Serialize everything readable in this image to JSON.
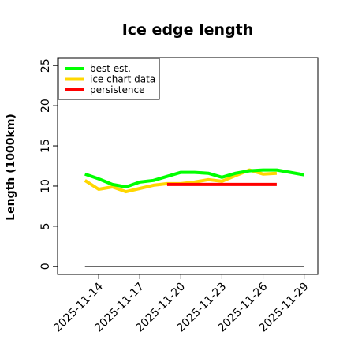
{
  "colors": {
    "best_est": "#00ff00",
    "ice_chart": "#ffd700",
    "persistence": "#ff0000",
    "zero_line": "#555555"
  },
  "chart_data": {
    "type": "line",
    "title": "Ice edge length",
    "xlabel": "",
    "ylabel": "Length (1000km)",
    "x_type": "date",
    "xlim": [
      "2025-11-11",
      "2025-11-30"
    ],
    "ylim": [
      -1,
      26
    ],
    "x_ticks": [
      "2025-11-14",
      "2025-11-17",
      "2025-11-20",
      "2025-11-23",
      "2025-11-26",
      "2025-11-29"
    ],
    "y_ticks": [
      0,
      5,
      10,
      15,
      20,
      25
    ],
    "grid": false,
    "legend_position": "top-left",
    "series": [
      {
        "name": "best est.",
        "color_key": "best_est",
        "x": [
          "2025-11-13",
          "2025-11-14",
          "2025-11-15",
          "2025-11-16",
          "2025-11-17",
          "2025-11-18",
          "2025-11-19",
          "2025-11-20",
          "2025-11-21",
          "2025-11-22",
          "2025-11-23",
          "2025-11-24",
          "2025-11-25",
          "2025-11-26",
          "2025-11-27",
          "2025-11-28",
          "2025-11-29"
        ],
        "y": [
          11.5,
          10.9,
          10.2,
          9.9,
          10.5,
          10.7,
          11.2,
          11.7,
          11.7,
          11.6,
          11.1,
          11.6,
          11.9,
          12.0,
          12.0,
          11.7,
          11.4
        ]
      },
      {
        "name": "ice chart data",
        "color_key": "ice_chart",
        "x": [
          "2025-11-13",
          "2025-11-14",
          "2025-11-15",
          "2025-11-16",
          "2025-11-17",
          "2025-11-18",
          "2025-11-19",
          "2025-11-20",
          "2025-11-21",
          "2025-11-22",
          "2025-11-23",
          "2025-11-24",
          "2025-11-25",
          "2025-11-26",
          "2025-11-27"
        ],
        "y": [
          10.7,
          9.6,
          9.9,
          9.3,
          9.7,
          10.1,
          10.3,
          10.3,
          10.5,
          10.8,
          10.6,
          11.3,
          12.0,
          11.5,
          11.6
        ]
      },
      {
        "name": "persistence",
        "color_key": "persistence",
        "x": [
          "2025-11-19",
          "2025-11-27"
        ],
        "y": [
          10.2,
          10.2
        ]
      }
    ],
    "reference_line": {
      "y": 0,
      "x": [
        "2025-11-13",
        "2025-11-29"
      ]
    }
  }
}
